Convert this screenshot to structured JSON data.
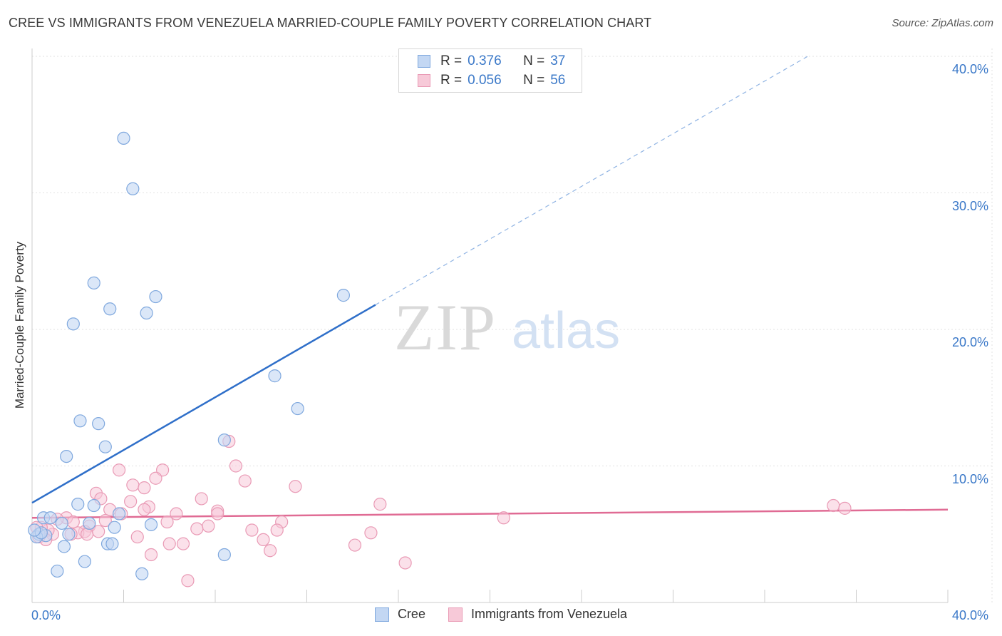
{
  "header": {
    "title": "CREE VS IMMIGRANTS FROM VENEZUELA MARRIED-COUPLE FAMILY POVERTY CORRELATION CHART",
    "source": "Source: ZipAtlas.com"
  },
  "watermark": {
    "zip": "ZIP",
    "atlas": "atlas"
  },
  "legend": {
    "r_label": "R =",
    "n_label": "N =",
    "rows": [
      {
        "r": "0.376",
        "n": "37",
        "color": "#8db8ec"
      },
      {
        "r": "0.056",
        "n": "56",
        "color": "#f2a5bf"
      }
    ]
  },
  "colors": {
    "cree_fill": "#c3d7f3",
    "cree_stroke": "#7fa8de",
    "cree_line": "#2f6fc9",
    "ven_fill": "#f7c9d8",
    "ven_stroke": "#e99ab5",
    "ven_line": "#e06b94"
  },
  "chart_data": {
    "type": "scatter",
    "title": "CREE VS IMMIGRANTS FROM VENEZUELA MARRIED-COUPLE FAMILY POVERTY CORRELATION CHART",
    "ylabel": "Married-Couple Family Poverty",
    "xlabel": "",
    "xlim": [
      0,
      40
    ],
    "ylim": [
      0,
      41
    ],
    "x_tick_labels": [
      "0.0%",
      "40.0%"
    ],
    "y_ticks": [
      10,
      20,
      30,
      40
    ],
    "y_tick_labels": [
      "10.0%",
      "20.0%",
      "30.0%",
      "40.0%"
    ],
    "legend_position": "bottom-center",
    "series": [
      {
        "name": "Cree",
        "r": 0.376,
        "n": 37,
        "trend": {
          "x0": 0,
          "y0": 7.3,
          "x1": 15,
          "y1": 21.8,
          "dash_x1": 40,
          "dash_y1": 45.9
        },
        "points": [
          [
            4.0,
            34.0
          ],
          [
            4.4,
            30.3
          ],
          [
            2.7,
            23.4
          ],
          [
            5.4,
            22.4
          ],
          [
            3.4,
            21.5
          ],
          [
            5.0,
            21.2
          ],
          [
            1.8,
            20.4
          ],
          [
            13.6,
            22.5
          ],
          [
            10.6,
            16.6
          ],
          [
            11.6,
            14.2
          ],
          [
            2.1,
            13.3
          ],
          [
            2.9,
            13.1
          ],
          [
            3.2,
            11.4
          ],
          [
            8.4,
            11.9
          ],
          [
            1.5,
            10.7
          ],
          [
            2.0,
            7.2
          ],
          [
            2.7,
            7.1
          ],
          [
            3.8,
            6.5
          ],
          [
            0.5,
            6.2
          ],
          [
            0.8,
            6.2
          ],
          [
            1.3,
            5.8
          ],
          [
            2.5,
            5.8
          ],
          [
            5.2,
            5.7
          ],
          [
            3.6,
            5.5
          ],
          [
            0.3,
            5.0
          ],
          [
            0.6,
            4.9
          ],
          [
            0.2,
            4.8
          ],
          [
            1.6,
            5.0
          ],
          [
            3.3,
            4.3
          ],
          [
            3.5,
            4.3
          ],
          [
            1.4,
            4.1
          ],
          [
            8.4,
            3.5
          ],
          [
            2.3,
            3.0
          ],
          [
            1.1,
            2.3
          ],
          [
            4.8,
            2.1
          ],
          [
            0.4,
            5.1
          ],
          [
            0.1,
            5.3
          ]
        ]
      },
      {
        "name": "Immigrants from Venezuela",
        "r": 0.056,
        "n": 56,
        "trend": {
          "x0": 0,
          "y0": 6.2,
          "x1": 40,
          "y1": 6.8
        },
        "points": [
          [
            8.6,
            11.8
          ],
          [
            8.9,
            10.0
          ],
          [
            3.8,
            9.7
          ],
          [
            5.7,
            9.7
          ],
          [
            5.4,
            9.1
          ],
          [
            9.3,
            8.9
          ],
          [
            11.5,
            8.5
          ],
          [
            4.4,
            8.6
          ],
          [
            4.9,
            8.4
          ],
          [
            2.8,
            8.0
          ],
          [
            3.0,
            7.6
          ],
          [
            4.3,
            7.4
          ],
          [
            7.4,
            7.6
          ],
          [
            15.2,
            7.2
          ],
          [
            5.1,
            7.0
          ],
          [
            4.9,
            6.8
          ],
          [
            3.4,
            6.8
          ],
          [
            8.1,
            6.7
          ],
          [
            3.9,
            6.5
          ],
          [
            6.3,
            6.5
          ],
          [
            8.1,
            6.5
          ],
          [
            3.2,
            6.0
          ],
          [
            5.9,
            5.9
          ],
          [
            1.5,
            6.2
          ],
          [
            1.1,
            6.1
          ],
          [
            20.6,
            6.2
          ],
          [
            35.0,
            7.1
          ],
          [
            35.5,
            6.9
          ],
          [
            10.9,
            5.9
          ],
          [
            7.7,
            5.6
          ],
          [
            2.5,
            5.6
          ],
          [
            7.2,
            5.4
          ],
          [
            9.6,
            5.3
          ],
          [
            10.7,
            5.3
          ],
          [
            14.8,
            5.1
          ],
          [
            2.3,
            5.2
          ],
          [
            2.0,
            5.1
          ],
          [
            1.7,
            5.0
          ],
          [
            2.4,
            5.0
          ],
          [
            0.9,
            5.0
          ],
          [
            0.7,
            5.3
          ],
          [
            0.4,
            5.5
          ],
          [
            0.2,
            5.5
          ],
          [
            4.6,
            4.8
          ],
          [
            10.1,
            4.6
          ],
          [
            6.0,
            4.3
          ],
          [
            6.6,
            4.3
          ],
          [
            14.1,
            4.2
          ],
          [
            10.4,
            3.8
          ],
          [
            5.2,
            3.5
          ],
          [
            16.3,
            2.9
          ],
          [
            6.8,
            1.6
          ],
          [
            0.3,
            4.8
          ],
          [
            1.8,
            5.9
          ],
          [
            0.6,
            4.6
          ],
          [
            2.9,
            5.2
          ]
        ]
      }
    ]
  }
}
